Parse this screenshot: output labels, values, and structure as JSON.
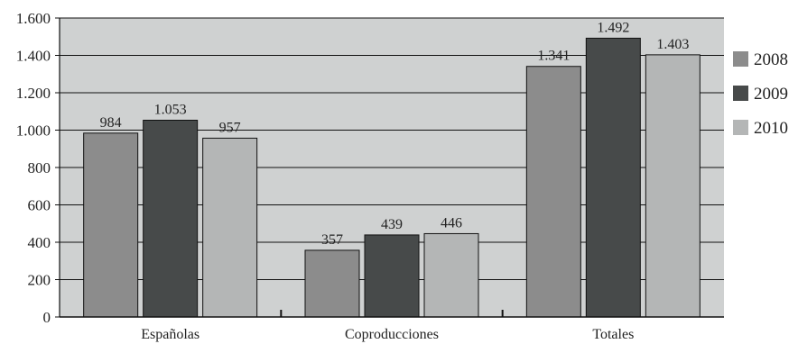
{
  "chart_data": {
    "type": "bar",
    "categories": [
      "Españolas",
      "Coproducciones",
      "Totales"
    ],
    "series": [
      {
        "name": "2008",
        "values": [
          984,
          357,
          1341
        ],
        "labels": [
          "984",
          "357",
          "1.341"
        ],
        "color": "#8c8c8c"
      },
      {
        "name": "2009",
        "values": [
          1053,
          439,
          1492
        ],
        "labels": [
          "1.053",
          "439",
          "1.492"
        ],
        "color": "#474a4a"
      },
      {
        "name": "2010",
        "values": [
          957,
          446,
          1403
        ],
        "labels": [
          "957",
          "446",
          "1.403"
        ],
        "color": "#b4b6b6"
      }
    ],
    "ylim": [
      0,
      1600
    ],
    "yticks": [
      0,
      200,
      400,
      600,
      800,
      1000,
      1200,
      1400,
      1600
    ],
    "ytick_labels": [
      "0",
      "200",
      "400",
      "600",
      "800",
      "1.000",
      "1.200",
      "1.400",
      "1.600"
    ],
    "title": "",
    "xlabel": "",
    "ylabel": "",
    "grid": true,
    "legend_position": "right",
    "plot_background": "#cfd1d1"
  }
}
